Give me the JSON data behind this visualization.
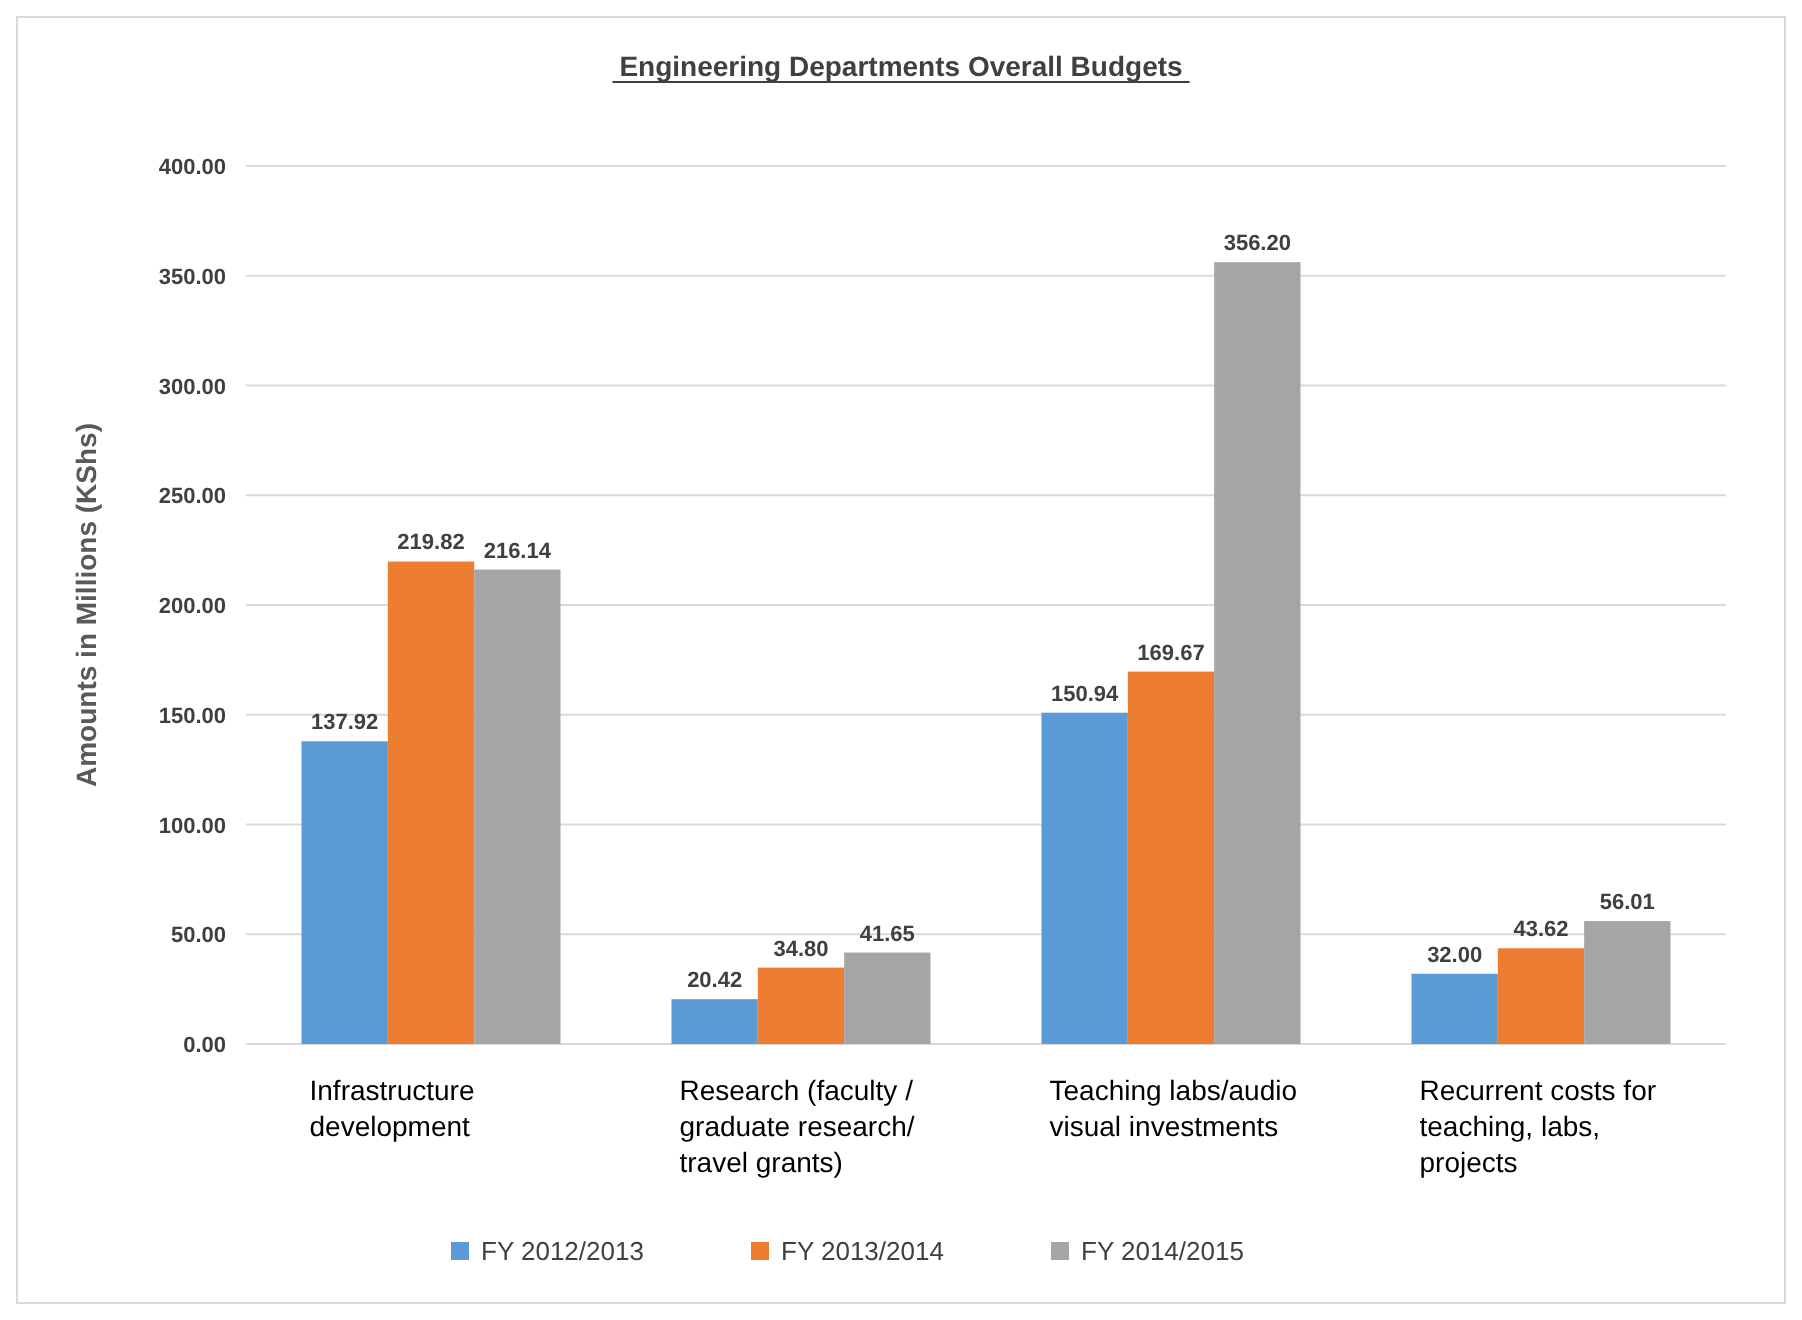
{
  "chart_data": {
    "type": "bar",
    "title": "Engineering Departments Overall Budgets",
    "ylabel": "Amounts in Millions (KShs)",
    "categories": [
      "Infrastructure development",
      "Research (faculty / graduate research/ travel grants)",
      "Teaching labs/audio visual investments",
      "Recurrent costs for teaching, labs, projects"
    ],
    "series": [
      {
        "name": "FY 2012/2013",
        "color": "#5b9bd5",
        "values": [
          137.92,
          20.42,
          150.94,
          32.0
        ],
        "value_labels": [
          "137.92",
          "20.42",
          "150.94",
          "32.00"
        ]
      },
      {
        "name": "FY 2013/2014",
        "color": "#ed7d31",
        "values": [
          219.82,
          34.8,
          169.67,
          43.62
        ],
        "value_labels": [
          "219.82",
          "34.80",
          "169.67",
          "43.62"
        ]
      },
      {
        "name": "FY 2014/2015",
        "color": "#a5a5a5",
        "values": [
          216.14,
          41.65,
          356.2,
          56.01
        ],
        "value_labels": [
          "216.14",
          "41.65",
          "356.20",
          "56.01"
        ]
      }
    ],
    "ylim": [
      0,
      400
    ],
    "yticks": [
      {
        "value": 0,
        "label": "0.00"
      },
      {
        "value": 50,
        "label": "50.00"
      },
      {
        "value": 100,
        "label": "100.00"
      },
      {
        "value": 150,
        "label": "150.00"
      },
      {
        "value": 200,
        "label": "200.00"
      },
      {
        "value": 250,
        "label": "250.00"
      },
      {
        "value": 300,
        "label": "300.00"
      },
      {
        "value": 350,
        "label": "350.00"
      },
      {
        "value": 400,
        "label": "400.00"
      }
    ],
    "grid": "y",
    "legend": "bottom"
  }
}
